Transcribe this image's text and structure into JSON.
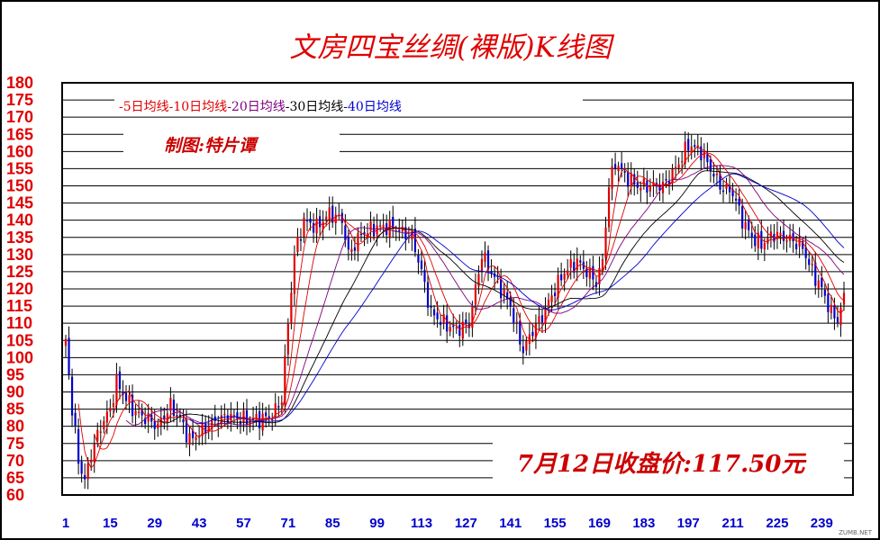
{
  "chart_data": {
    "type": "candlestick",
    "title": "文房四宝丝绸(裸版)K线图",
    "subtitle": "制图:特片谭",
    "annotation": "7月12日收盘价:117.50元",
    "watermark": "ZUMB.NET",
    "legend": [
      {
        "name": "-5日均线",
        "color": "#e00000"
      },
      {
        "name": "-10日均线",
        "color": "#e00000"
      },
      {
        "name": "-20日均线",
        "color": "#800080"
      },
      {
        "name": "-30日均线",
        "color": "#000000"
      },
      {
        "name": "-40日均线",
        "color": "#0000cc"
      }
    ],
    "yticks": [
      180,
      175,
      170,
      165,
      160,
      155,
      150,
      145,
      140,
      135,
      130,
      125,
      120,
      115,
      110,
      105,
      100,
      95,
      90,
      85,
      80,
      75,
      70,
      65,
      60
    ],
    "xticks": [
      1,
      15,
      29,
      43,
      57,
      71,
      85,
      99,
      113,
      127,
      141,
      155,
      169,
      183,
      197,
      211,
      225,
      239
    ],
    "ylim": [
      60,
      180
    ],
    "xlim": [
      1,
      246
    ],
    "grid": "horizontal",
    "up_color": "#e00000",
    "down_color": "#0000cc",
    "anchors": [
      [
        1,
        105
      ],
      [
        3,
        85
      ],
      [
        5,
        70
      ],
      [
        7,
        64
      ],
      [
        9,
        72
      ],
      [
        12,
        80
      ],
      [
        15,
        85
      ],
      [
        17,
        93
      ],
      [
        20,
        88
      ],
      [
        23,
        84
      ],
      [
        27,
        82
      ],
      [
        30,
        80
      ],
      [
        34,
        86
      ],
      [
        37,
        82
      ],
      [
        40,
        76
      ],
      [
        43,
        78
      ],
      [
        47,
        81
      ],
      [
        52,
        83
      ],
      [
        57,
        82
      ],
      [
        62,
        82
      ],
      [
        66,
        83
      ],
      [
        69,
        88
      ],
      [
        71,
        110
      ],
      [
        73,
        130
      ],
      [
        76,
        140
      ],
      [
        80,
        138
      ],
      [
        84,
        142
      ],
      [
        88,
        140
      ],
      [
        90,
        130
      ],
      [
        94,
        136
      ],
      [
        99,
        138
      ],
      [
        104,
        138
      ],
      [
        110,
        135
      ],
      [
        113,
        125
      ],
      [
        116,
        113
      ],
      [
        120,
        110
      ],
      [
        124,
        108
      ],
      [
        128,
        110
      ],
      [
        130,
        120
      ],
      [
        132,
        130
      ],
      [
        135,
        125
      ],
      [
        138,
        120
      ],
      [
        141,
        115
      ],
      [
        143,
        108
      ],
      [
        145,
        102
      ],
      [
        148,
        108
      ],
      [
        151,
        112
      ],
      [
        155,
        120
      ],
      [
        158,
        125
      ],
      [
        162,
        128
      ],
      [
        165,
        125
      ],
      [
        168,
        122
      ],
      [
        170,
        128
      ],
      [
        172,
        150
      ],
      [
        174,
        157
      ],
      [
        177,
        153
      ],
      [
        181,
        150
      ],
      [
        185,
        150
      ],
      [
        189,
        150
      ],
      [
        193,
        155
      ],
      [
        197,
        162
      ],
      [
        201,
        160
      ],
      [
        204,
        155
      ],
      [
        207,
        150
      ],
      [
        211,
        148
      ],
      [
        214,
        140
      ],
      [
        217,
        135
      ],
      [
        220,
        133
      ],
      [
        224,
        136
      ],
      [
        227,
        135
      ],
      [
        230,
        134
      ],
      [
        233,
        132
      ],
      [
        236,
        125
      ],
      [
        239,
        120
      ],
      [
        242,
        113
      ],
      [
        244,
        111
      ],
      [
        246,
        117.5
      ]
    ]
  }
}
